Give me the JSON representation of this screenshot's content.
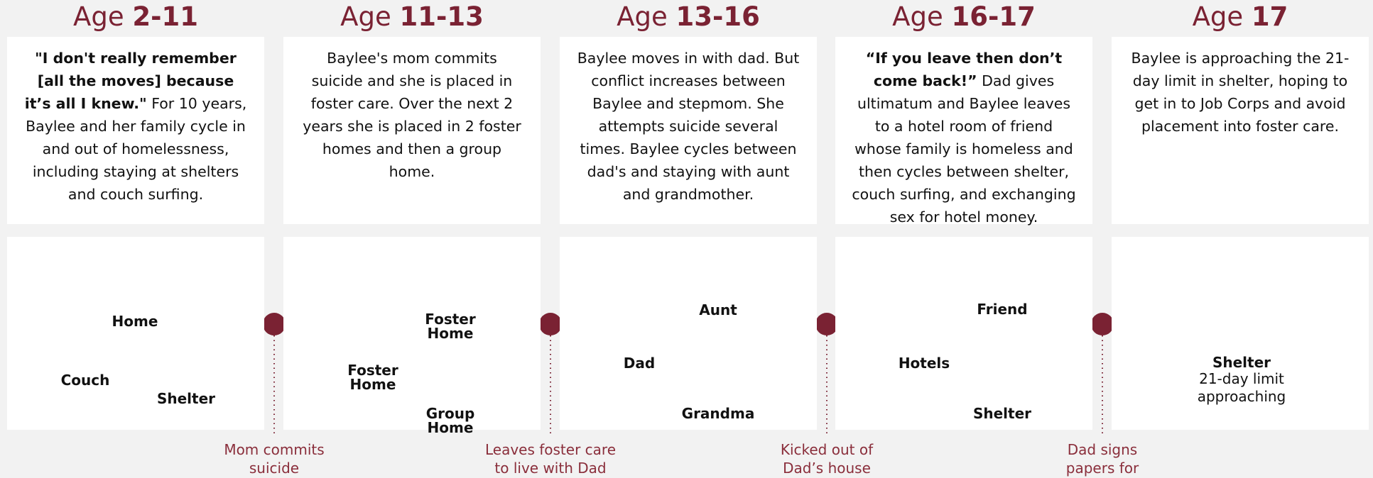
{
  "stages": [
    {
      "prefix": "Age",
      "range": "2-11",
      "text": [
        {
          "t": "\"I don't really remember [all the moves] because it’s all I knew.\"",
          "b": true
        },
        {
          "t": " For 10 years, Baylee and her family cycle in and out of homelessness, including staying at shelters and couch surfing.",
          "b": false
        }
      ],
      "nodes": [
        "Home",
        "Shelter",
        "Couch"
      ]
    },
    {
      "prefix": "Age",
      "range": "11-13",
      "text": [
        {
          "t": "Baylee's mom commits suicide and she is placed in foster care. Over the next 2 years she is placed in 2 foster homes and then a group home.",
          "b": false
        }
      ],
      "nodes": [
        "Foster Home",
        "Foster Home",
        "Group Home"
      ]
    },
    {
      "prefix": "Age",
      "range": "13-16",
      "text": [
        {
          "t": "Baylee moves in with dad. But conflict increases between Baylee and stepmom. She attempts suicide several times. Baylee cycles between dad's and staying with aunt and grandmother.",
          "b": false
        }
      ],
      "nodes": [
        "Dad",
        "Aunt",
        "Grandma"
      ]
    },
    {
      "prefix": "Age",
      "range": "16-17",
      "text": [
        {
          "t": "“If you leave then don’t come back!”",
          "b": true
        },
        {
          "t": " Dad gives ultimatum and Baylee leaves to a hotel room of friend whose family is homeless and then cycles between shelter, couch surfing, and exchanging sex for hotel money.",
          "b": false
        }
      ],
      "nodes": [
        "Hotels",
        "Friend",
        "Shelter"
      ]
    },
    {
      "prefix": "Age",
      "range": "17",
      "text": [
        {
          "t": "Baylee is approaching the 21-day limit in shelter, hoping to get in to Job Corps and avoid placement into foster care.",
          "b": false
        }
      ],
      "nodes": [
        "Shelter"
      ],
      "note": "21-day limit approaching"
    }
  ],
  "transitions": [
    "Mom commits suicide",
    "Leaves foster care to live with Dad",
    "Kicked out of Dad’s house",
    "Dad signs papers for shelter"
  ]
}
